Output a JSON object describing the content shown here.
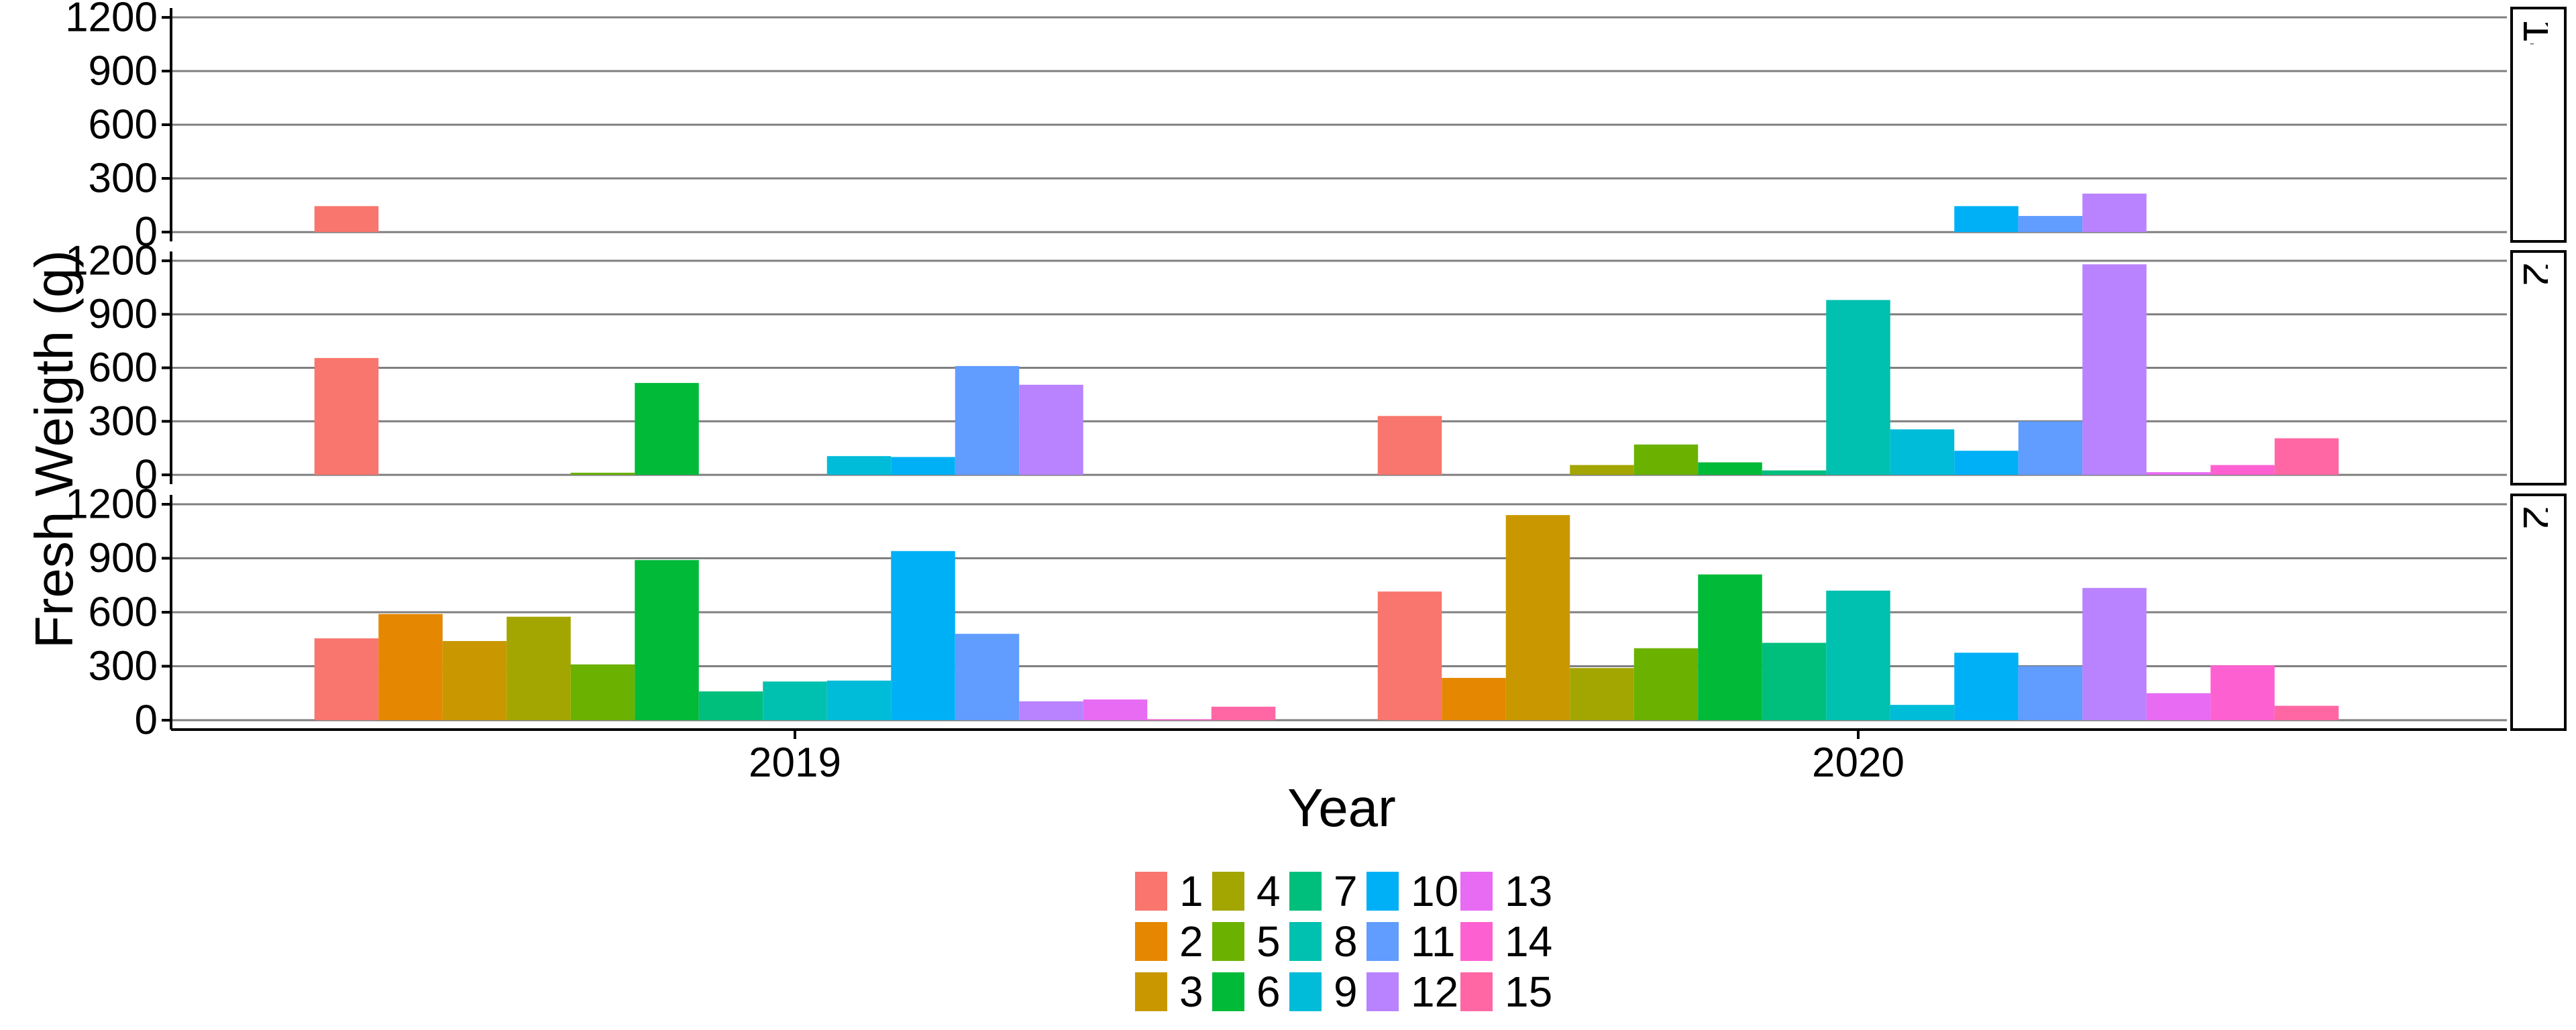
{
  "chart_data": {
    "type": "bar",
    "xlabel": "Year",
    "ylabel": "Fresh Weigth (g)",
    "categories": [
      "2019",
      "2020"
    ],
    "y_ticks": [
      "0",
      "300",
      "600",
      "900",
      "1200"
    ],
    "ylim": [
      0,
      1200
    ],
    "grid": "horizontal major gridlines on",
    "facets": [
      "14 de diciembre",
      "21 de diciembre",
      "28 de diciembre"
    ],
    "legend": {
      "placement": "bottom",
      "entries": [
        "1",
        "2",
        "3",
        "4",
        "5",
        "6",
        "7",
        "8",
        "9",
        "10",
        "11",
        "12",
        "13",
        "14",
        "15"
      ]
    },
    "series": [
      {
        "name": "1",
        "color": "#F8766D",
        "values": {
          "14 de diciembre": [
            145,
            null
          ],
          "21 de diciembre": [
            655,
            330
          ],
          "28 de diciembre": [
            455,
            715
          ]
        }
      },
      {
        "name": "2",
        "color": "#E58700",
        "values": {
          "14 de diciembre": [
            null,
            null
          ],
          "21 de diciembre": [
            null,
            null
          ],
          "28 de diciembre": [
            590,
            235
          ]
        }
      },
      {
        "name": "3",
        "color": "#C99800",
        "values": {
          "14 de diciembre": [
            null,
            null
          ],
          "21 de diciembre": [
            null,
            null
          ],
          "28 de diciembre": [
            440,
            1140
          ]
        }
      },
      {
        "name": "4",
        "color": "#A3A500",
        "values": {
          "14 de diciembre": [
            null,
            null
          ],
          "21 de diciembre": [
            null,
            55
          ],
          "28 de diciembre": [
            575,
            290
          ]
        }
      },
      {
        "name": "5",
        "color": "#6BB100",
        "values": {
          "14 de diciembre": [
            null,
            null
          ],
          "21 de diciembre": [
            12,
            170
          ],
          "28 de diciembre": [
            310,
            400
          ]
        }
      },
      {
        "name": "6",
        "color": "#00BA38",
        "values": {
          "14 de diciembre": [
            null,
            null
          ],
          "21 de diciembre": [
            515,
            70
          ],
          "28 de diciembre": [
            890,
            810
          ]
        }
      },
      {
        "name": "7",
        "color": "#00BF7D",
        "values": {
          "14 de diciembre": [
            null,
            null
          ],
          "21 de diciembre": [
            null,
            25
          ],
          "28 de diciembre": [
            160,
            430
          ]
        }
      },
      {
        "name": "8",
        "color": "#00C0AF",
        "values": {
          "14 de diciembre": [
            null,
            null
          ],
          "21 de diciembre": [
            null,
            980
          ],
          "28 de diciembre": [
            215,
            720
          ]
        }
      },
      {
        "name": "9",
        "color": "#00BCD8",
        "values": {
          "14 de diciembre": [
            null,
            null
          ],
          "21 de diciembre": [
            105,
            255
          ],
          "28 de diciembre": [
            220,
            85
          ]
        }
      },
      {
        "name": "10",
        "color": "#00B0F6",
        "values": {
          "14 de diciembre": [
            null,
            145
          ],
          "21 de diciembre": [
            100,
            135
          ],
          "28 de diciembre": [
            940,
            375
          ]
        }
      },
      {
        "name": "11",
        "color": "#619CFF",
        "values": {
          "14 de diciembre": [
            null,
            90
          ],
          "21 de diciembre": [
            610,
            300
          ],
          "28 de diciembre": [
            480,
            300
          ]
        }
      },
      {
        "name": "12",
        "color": "#B983FF",
        "values": {
          "14 de diciembre": [
            null,
            215
          ],
          "21 de diciembre": [
            505,
            1180
          ],
          "28 de diciembre": [
            105,
            735
          ]
        }
      },
      {
        "name": "13",
        "color": "#E76BF3",
        "values": {
          "14 de diciembre": [
            null,
            null
          ],
          "21 de diciembre": [
            null,
            15
          ],
          "28 de diciembre": [
            115,
            150
          ]
        }
      },
      {
        "name": "14",
        "color": "#FD61D1",
        "values": {
          "14 de diciembre": [
            null,
            null
          ],
          "21 de diciembre": [
            null,
            55
          ],
          "28 de diciembre": [
            5,
            305
          ]
        }
      },
      {
        "name": "15",
        "color": "#FF67A4",
        "values": {
          "14 de diciembre": [
            null,
            null
          ],
          "21 de diciembre": [
            null,
            205
          ],
          "28 de diciembre": [
            75,
            80
          ]
        }
      }
    ]
  }
}
